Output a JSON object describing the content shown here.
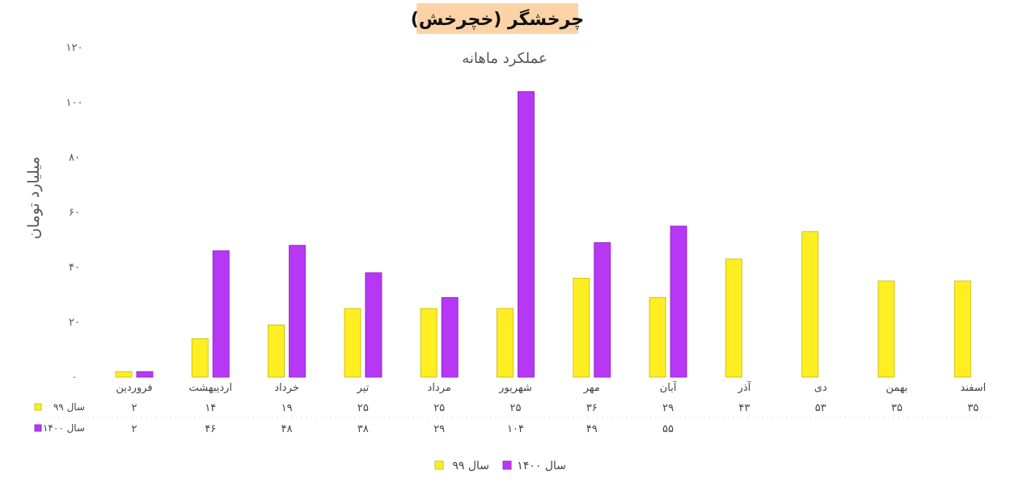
{
  "chart_data": {
    "type": "bar",
    "title": "چرخشگر (خچرخش)",
    "subtitle": "عملکرد ماهانه",
    "ylabel": "میلیارد تومان",
    "ylim": [
      0,
      120
    ],
    "yticks": [
      0,
      20,
      40,
      60,
      80,
      100,
      120
    ],
    "ytick_labels": [
      "۰",
      "۲۰",
      "۴۰",
      "۶۰",
      "۸۰",
      "۱۰۰",
      "۱۲۰"
    ],
    "grid": false,
    "legend_position": "bottom-center",
    "categories": [
      "فروردین",
      "اردیبهشت",
      "خرداد",
      "تیر",
      "مرداد",
      "شهریور",
      "مهر",
      "آبان",
      "آذر",
      "دی",
      "بهمن",
      "اسفند"
    ],
    "series": [
      {
        "name": "سال ۹۹",
        "color": "#ffee22",
        "values": [
          2,
          14,
          19,
          25,
          25,
          25,
          36,
          29,
          43,
          53,
          35,
          35
        ],
        "labels": [
          "۲",
          "۱۴",
          "۱۹",
          "۲۵",
          "۲۵",
          "۲۵",
          "۳۶",
          "۲۹",
          "۴۳",
          "۵۳",
          "۳۵",
          "۳۵"
        ]
      },
      {
        "name": "سال ۱۴۰۰",
        "color": "#b638f5",
        "values": [
          2,
          46,
          48,
          38,
          29,
          104,
          49,
          55,
          null,
          null,
          null,
          null
        ],
        "labels": [
          "۲",
          "۴۶",
          "۴۸",
          "۳۸",
          "۲۹",
          "۱۰۴",
          "۴۹",
          "۵۵",
          "",
          "",
          "",
          ""
        ]
      }
    ]
  }
}
